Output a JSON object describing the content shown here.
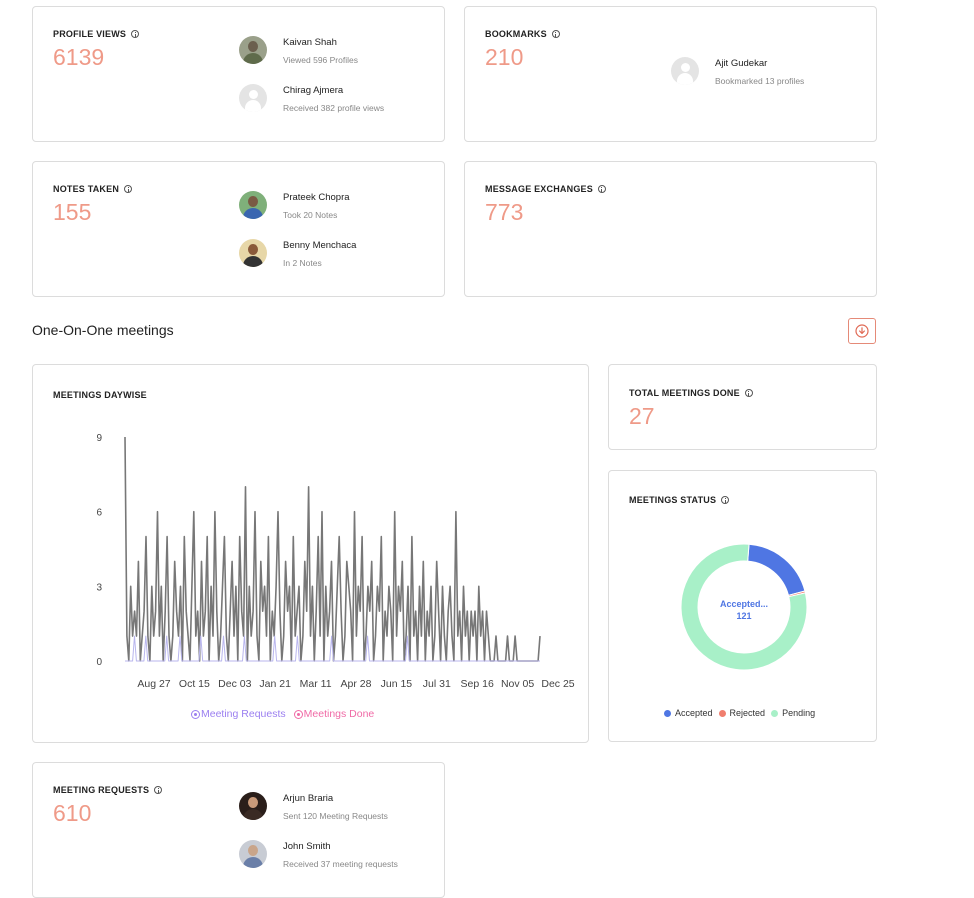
{
  "cards": {
    "profile_views": {
      "title": "PROFILE VIEWS",
      "value": "6139",
      "people": [
        {
          "name": "Kaivan Shah",
          "detail": "Viewed 596 Profiles"
        },
        {
          "name": "Chirag Ajmera",
          "detail": "Received 382 profile views"
        }
      ]
    },
    "bookmarks": {
      "title": "BOOKMARKS",
      "value": "210",
      "people": [
        {
          "name": "Ajit Gudekar",
          "detail": "Bookmarked 13 profiles"
        }
      ]
    },
    "notes_taken": {
      "title": "NOTES TAKEN",
      "value": "155",
      "people": [
        {
          "name": "Prateek Chopra",
          "detail": "Took 20 Notes"
        },
        {
          "name": "Benny Menchaca",
          "detail": "In 2 Notes"
        }
      ]
    },
    "message_exchanges": {
      "title": "MESSAGE EXCHANGES",
      "value": "773"
    },
    "total_meetings": {
      "title": "TOTAL MEETINGS DONE",
      "value": "27"
    },
    "meeting_requests": {
      "title": "MEETING REQUESTS",
      "value": "610",
      "people": [
        {
          "name": "Arjun Braria",
          "detail": "Sent 120 Meeting Requests"
        },
        {
          "name": "John Smith",
          "detail": "Received 37 meeting requests"
        }
      ]
    }
  },
  "section": {
    "title": "One-On-One meetings"
  },
  "colors": {
    "accent": "#ef9a88",
    "accepted": "#4f76e3",
    "rejected": "#f07e6e",
    "pending": "#a8f0c8",
    "requests_series": "#9b7ff0",
    "done_series": "#f06aa6"
  },
  "chart_data": [
    {
      "type": "line",
      "title": "MEETINGS DAYWISE",
      "x_tick_labels": [
        "Aug 27",
        "Oct 15",
        "Dec 03",
        "Jan 21",
        "Mar 11",
        "Apr 28",
        "Jun 15",
        "Jul 31",
        "Sep 16",
        "Nov 05",
        "Dec 25"
      ],
      "y_ticks": [
        0,
        3,
        6,
        9
      ],
      "ylim": [
        0,
        9
      ],
      "grid": false,
      "legend_position": "bottom",
      "series": [
        {
          "name": "Meeting Requests",
          "values": [
            9,
            1,
            0,
            3,
            1,
            2,
            1,
            4,
            0,
            1,
            2,
            5,
            1,
            0,
            3,
            1,
            2,
            6,
            1,
            3,
            0,
            2,
            5,
            1,
            0,
            1,
            4,
            2,
            1,
            3,
            0,
            5,
            2,
            1,
            0,
            3,
            6,
            1,
            2,
            0,
            4,
            1,
            2,
            5,
            0,
            3,
            1,
            6,
            2,
            0,
            1,
            3,
            5,
            1,
            0,
            2,
            4,
            1,
            3,
            0,
            5,
            2,
            1,
            7,
            0,
            3,
            1,
            2,
            6,
            1,
            0,
            4,
            2,
            3,
            1,
            5,
            0,
            2,
            1,
            3,
            6,
            2,
            0,
            1,
            4,
            2,
            3,
            0,
            5,
            1,
            2,
            3,
            0,
            1,
            4,
            2,
            7,
            1,
            3,
            0,
            2,
            5,
            1,
            6,
            0,
            3,
            1,
            2,
            4,
            0,
            1,
            3,
            5,
            2,
            0,
            1,
            4,
            3,
            2,
            0,
            6,
            1,
            3,
            2,
            5,
            0,
            1,
            3,
            2,
            4,
            0,
            1,
            3,
            2,
            5,
            0,
            2,
            1,
            3,
            2,
            0,
            6,
            1,
            3,
            2,
            4,
            0,
            1,
            3,
            0,
            5,
            1,
            2,
            0,
            3,
            1,
            4,
            0,
            2,
            1,
            3,
            0,
            1,
            4,
            2,
            0,
            3,
            1,
            0,
            2,
            3,
            1,
            0,
            6,
            1,
            2,
            0,
            3,
            1,
            2,
            0,
            2,
            1,
            2,
            0,
            3,
            1,
            2,
            0,
            2,
            1,
            0,
            0,
            0,
            1,
            0,
            0,
            0,
            0,
            0,
            1,
            0,
            0,
            0,
            1,
            0,
            0,
            0,
            0,
            0,
            0,
            0,
            0,
            0,
            0,
            0,
            0,
            1
          ]
        },
        {
          "name": "Meetings Done",
          "values": [
            0,
            0,
            0,
            0,
            0,
            1,
            0,
            0,
            0,
            0,
            0,
            1,
            0,
            0,
            0,
            0,
            0,
            0,
            0,
            0,
            0,
            0,
            1,
            0,
            0,
            0,
            0,
            0,
            0,
            1,
            0,
            0,
            0,
            0,
            0,
            0,
            0,
            0,
            0,
            0,
            1,
            0,
            0,
            0,
            0,
            0,
            0,
            0,
            0,
            0,
            0,
            0,
            1,
            0,
            0,
            0,
            0,
            0,
            0,
            0,
            0,
            0,
            0,
            1,
            0,
            0,
            0,
            0,
            0,
            0,
            0,
            0,
            0,
            0,
            0,
            0,
            0,
            0,
            0,
            1,
            0,
            0,
            0,
            0,
            0,
            0,
            0,
            0,
            0,
            0,
            0,
            1,
            0,
            0,
            0,
            0,
            0,
            0,
            0,
            0,
            0,
            0,
            0,
            0,
            0,
            0,
            0,
            0,
            0,
            1,
            0,
            0,
            0,
            0,
            0,
            0,
            0,
            0,
            0,
            0,
            0,
            0,
            0,
            0,
            0,
            0,
            0,
            0,
            1,
            0,
            0,
            0,
            0,
            0,
            0,
            0,
            0,
            0,
            0,
            0,
            0,
            0,
            0,
            0,
            0,
            0,
            0,
            0,
            0,
            1,
            0,
            0,
            0,
            0,
            0,
            0,
            0,
            0,
            0,
            0,
            0,
            0,
            0,
            0,
            0,
            0,
            0,
            0,
            0,
            0,
            0,
            0,
            0,
            0,
            0,
            0,
            0,
            0,
            0,
            0,
            0,
            0,
            0,
            0,
            0,
            0,
            0,
            0,
            0,
            0,
            0,
            0,
            0,
            0,
            0,
            0,
            0,
            0,
            0,
            0,
            0,
            0,
            0,
            0,
            0,
            0,
            0,
            0,
            0,
            0,
            0,
            0,
            0,
            0,
            0,
            0,
            0,
            0,
            0,
            0
          ]
        }
      ]
    },
    {
      "type": "pie",
      "title": "MEETINGS STATUS",
      "center_label": "Accepted...",
      "center_value": "121",
      "legend_position": "bottom",
      "categories": [
        "Accepted",
        "Rejected",
        "Pending"
      ],
      "values": [
        121,
        3,
        492
      ]
    }
  ]
}
